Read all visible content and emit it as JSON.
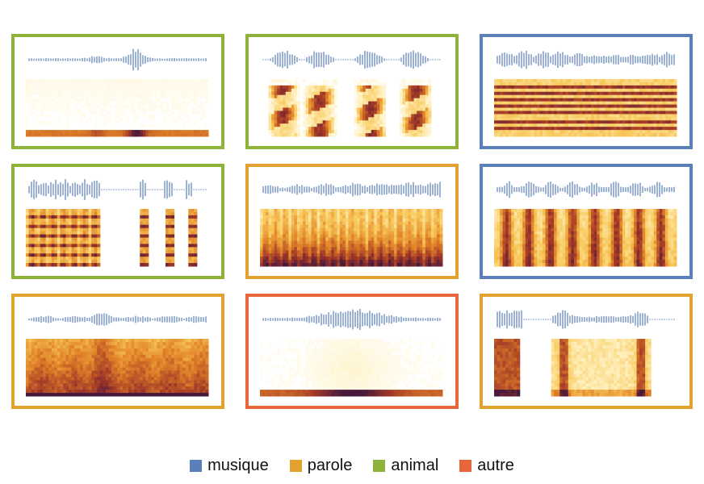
{
  "colors": {
    "musique": "#5b7fb9",
    "parole": "#e3a130",
    "animal": "#8eb33b",
    "autre": "#e8663a",
    "waveform": "#5b7fb9"
  },
  "legend": [
    {
      "label": "musique",
      "category": "musique"
    },
    {
      "label": "parole",
      "category": "parole"
    },
    {
      "label": "animal",
      "category": "animal"
    },
    {
      "label": "autre",
      "category": "autre"
    }
  ],
  "panels": [
    {
      "id": 1,
      "category": "animal",
      "pattern": "sparse-low"
    },
    {
      "id": 2,
      "category": "animal",
      "pattern": "chirps"
    },
    {
      "id": 3,
      "category": "musique",
      "pattern": "harmonic"
    },
    {
      "id": 4,
      "category": "animal",
      "pattern": "pulses"
    },
    {
      "id": 5,
      "category": "parole",
      "pattern": "dense"
    },
    {
      "id": 6,
      "category": "musique",
      "pattern": "vertical-bands"
    },
    {
      "id": 7,
      "category": "parole",
      "pattern": "dense-dark"
    },
    {
      "id": 8,
      "category": "autre",
      "pattern": "low-band"
    },
    {
      "id": 9,
      "category": "parole",
      "pattern": "three-bursts"
    }
  ]
}
